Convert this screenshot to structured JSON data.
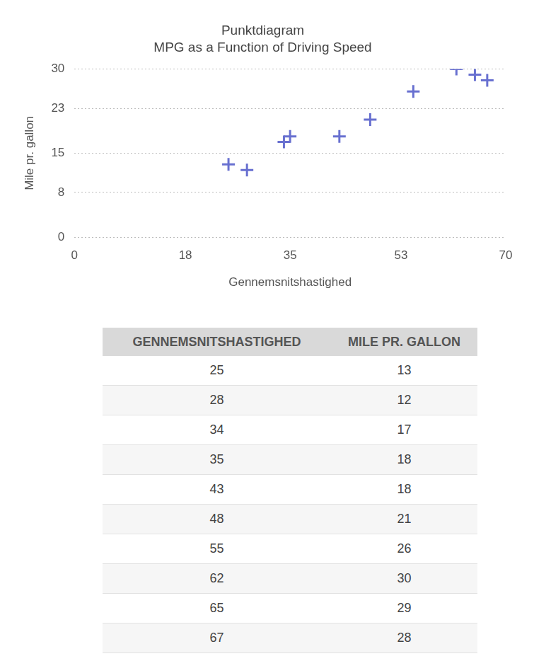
{
  "chart_data": {
    "type": "scatter",
    "title": "Punktdiagram",
    "subtitle": "MPG as a Function of Driving Speed",
    "x_label": "Gennemsnitshastighed",
    "y_label": "Mile pr. gallon",
    "x": [
      25,
      28,
      34,
      35,
      43,
      48,
      55,
      62,
      65,
      67
    ],
    "values": [
      13,
      12,
      17,
      18,
      18,
      21,
      26,
      30,
      29,
      28
    ],
    "color": "#6870d0",
    "marker": "cross",
    "xlim": [
      0,
      70
    ],
    "xticks": [
      0,
      18,
      35,
      53,
      70
    ],
    "ylim": [
      0,
      30
    ],
    "yticks": [
      0,
      8,
      15,
      23,
      30
    ],
    "grid": true
  },
  "table": {
    "header": [
      "GENNEMSNITSHASTIGHED",
      "MILE PR. GALLON"
    ],
    "rows": [
      [
        25,
        13
      ],
      [
        28,
        12
      ],
      [
        34,
        17
      ],
      [
        35,
        18
      ],
      [
        43,
        18
      ],
      [
        48,
        21
      ],
      [
        55,
        26
      ],
      [
        62,
        30
      ],
      [
        65,
        29
      ],
      [
        67,
        28
      ]
    ]
  }
}
